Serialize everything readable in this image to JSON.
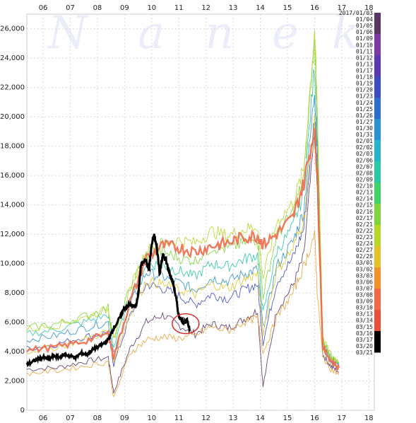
{
  "watermark": [
    "N",
    "a",
    "n",
    "e",
    "k"
  ],
  "chart_data": {
    "type": "line",
    "x_ticks": [
      "06",
      "07",
      "08",
      "09",
      "10",
      "11",
      "12",
      "13",
      "14",
      "15",
      "16",
      "17",
      "18"
    ],
    "y_ticks": [
      "0",
      "2,000",
      "4,000",
      "6,000",
      "8,000",
      "10,000",
      "12,000",
      "14,000",
      "16,000",
      "18,000",
      "20,000",
      "22,000",
      "24,000",
      "26,000"
    ],
    "xlim": [
      2005.4,
      2018.2
    ],
    "ylim": [
      0,
      27000
    ],
    "grid": true,
    "legend_position": "right",
    "legend_title": "2017/01/03",
    "legend_entries": [
      "01/04",
      "01/05",
      "01/06",
      "01/09",
      "01/10",
      "01/11",
      "01/12",
      "01/13",
      "01/17",
      "01/18",
      "01/19",
      "01/20",
      "01/23",
      "01/24",
      "01/25",
      "01/26",
      "01/27",
      "01/30",
      "01/31",
      "02/01",
      "02/02",
      "02/03",
      "02/06",
      "02/07",
      "02/08",
      "02/09",
      "02/10",
      "02/13",
      "02/14",
      "02/15",
      "02/16",
      "02/17",
      "02/21",
      "02/22",
      "02/23",
      "02/24",
      "02/27",
      "02/28",
      "03/01",
      "03/02",
      "03/03",
      "03/06",
      "03/07",
      "03/08",
      "03/09",
      "03/10",
      "03/13",
      "03/14",
      "03/15",
      "03/16",
      "03/17",
      "03/20",
      "03/21"
    ],
    "legend_colors": [
      "#5a3566",
      "#7a3aa0",
      "#5b3ab0",
      "#3f4cc0",
      "#2f6ccc",
      "#2a92cf",
      "#27b3c9",
      "#2cc7a6",
      "#42d26b",
      "#7ed43a",
      "#b7d72a",
      "#e0c42a",
      "#f0932c",
      "#f06a4a",
      "#e8503e",
      "#000000"
    ],
    "highlight_series": {
      "name": "03/21",
      "color": "#000000",
      "x": [
        2005.4,
        2005.6,
        2005.8,
        2006.0,
        2006.2,
        2006.4,
        2006.6,
        2006.8,
        2007.0,
        2007.2,
        2007.4,
        2007.6,
        2007.8,
        2008.0,
        2008.2,
        2008.4,
        2008.5,
        2008.6,
        2008.8,
        2009.0,
        2009.2,
        2009.4,
        2009.5,
        2009.6,
        2009.75,
        2009.9,
        2010.0,
        2010.1,
        2010.2,
        2010.3,
        2010.4,
        2010.5,
        2010.6,
        2010.7,
        2010.8,
        2010.9,
        2011.0,
        2011.1,
        2011.2,
        2011.3,
        2011.4
      ],
      "y": [
        3100,
        3300,
        3500,
        3600,
        3500,
        3700,
        3600,
        3800,
        3700,
        3600,
        3900,
        3800,
        4100,
        4300,
        4500,
        4800,
        5200,
        5600,
        6200,
        7000,
        7200,
        7000,
        7800,
        9800,
        10400,
        9600,
        11300,
        11900,
        10900,
        9300,
        10600,
        10300,
        9700,
        9100,
        8600,
        7600,
        6400,
        6200,
        6000,
        6100,
        5500
      ]
    },
    "annotation": {
      "type": "circle",
      "x": 2011.25,
      "y": 5900,
      "color": "#e03030"
    },
    "lines": [
      {
        "name": "2017/01/03",
        "color": "#5a3566",
        "x": [
          2005.4,
          2006.5,
          2007.5,
          2008.4,
          2008.6,
          2009.2,
          2009.8,
          2010.4,
          2011.0,
          2011.6,
          2012.2,
          2012.8,
          2013.4,
          2013.9,
          2014.1,
          2014.6,
          2015.2,
          2015.6,
          2016.0,
          2016.1,
          2016.3,
          2016.6,
          2016.9
        ],
        "y": [
          2800,
          2900,
          3300,
          3600,
          1200,
          4200,
          6000,
          6500,
          5800,
          5200,
          5900,
          5600,
          6200,
          6800,
          1600,
          6800,
          8500,
          10500,
          18800,
          15000,
          3800,
          3000,
          2600
        ]
      },
      {
        "name": "01/11",
        "color": "#3f4cc0",
        "x": [
          2005.4,
          2006.5,
          2007.5,
          2008.4,
          2008.6,
          2009.2,
          2009.8,
          2010.4,
          2011.0,
          2011.6,
          2012.2,
          2012.8,
          2013.4,
          2013.9,
          2014.1,
          2014.6,
          2015.2,
          2015.6,
          2016.0,
          2016.1,
          2016.3,
          2016.6,
          2016.9
        ],
        "y": [
          4200,
          4500,
          5000,
          5300,
          3100,
          6400,
          8600,
          8300,
          7800,
          7200,
          7900,
          7600,
          8200,
          8600,
          4600,
          8700,
          10400,
          12400,
          20000,
          16500,
          4200,
          3300,
          2800
        ]
      },
      {
        "name": "01/24",
        "color": "#2a92cf",
        "x": [
          2005.4,
          2006.5,
          2007.5,
          2008.4,
          2008.6,
          2009.2,
          2009.8,
          2010.4,
          2011.0,
          2011.6,
          2012.2,
          2012.8,
          2013.4,
          2013.9,
          2014.1,
          2014.6,
          2015.2,
          2015.6,
          2016.0,
          2016.1,
          2016.3,
          2016.6,
          2016.9
        ],
        "y": [
          4800,
          5100,
          5600,
          6000,
          3800,
          7200,
          9400,
          9100,
          8700,
          8200,
          9000,
          8800,
          9300,
          9600,
          5600,
          9800,
          11500,
          13600,
          21800,
          17500,
          4400,
          3500,
          3000
        ]
      },
      {
        "name": "02/03",
        "color": "#2cc7a6",
        "x": [
          2005.4,
          2006.5,
          2007.5,
          2008.4,
          2008.6,
          2009.2,
          2009.8,
          2010.4,
          2011.0,
          2011.6,
          2012.2,
          2012.8,
          2013.4,
          2013.9,
          2014.1,
          2014.6,
          2015.2,
          2015.6,
          2016.0,
          2016.1,
          2016.3,
          2016.6,
          2016.9
        ],
        "y": [
          5200,
          5500,
          6000,
          6500,
          4300,
          7800,
          10000,
          9900,
          9500,
          9100,
          10000,
          9800,
          10300,
          10600,
          6600,
          10800,
          12500,
          14800,
          23500,
          18500,
          4600,
          3600,
          3100
        ]
      },
      {
        "name": "02/13",
        "color": "#7ed43a",
        "x": [
          2005.4,
          2006.5,
          2007.5,
          2008.4,
          2008.6,
          2009.2,
          2009.8,
          2010.4,
          2011.0,
          2011.6,
          2012.2,
          2012.8,
          2013.4,
          2013.9,
          2014.1,
          2014.6,
          2015.2,
          2015.6,
          2016.0,
          2016.1,
          2016.3,
          2016.6,
          2016.9
        ],
        "y": [
          5600,
          5900,
          6400,
          7000,
          4800,
          8400,
          10600,
          10800,
          10400,
          10200,
          11100,
          11000,
          11400,
          11700,
          7800,
          11900,
          13500,
          15800,
          25400,
          19800,
          4800,
          3700,
          3200
        ]
      },
      {
        "name": "02/22",
        "color": "#b7d72a",
        "x": [
          2005.4,
          2006.5,
          2007.5,
          2008.4,
          2008.6,
          2009.2,
          2009.8,
          2010.4,
          2011.0,
          2011.6,
          2012.2,
          2012.8,
          2013.4,
          2013.9,
          2014.1,
          2014.6,
          2015.2,
          2015.6,
          2016.0,
          2016.1,
          2016.3,
          2016.6,
          2016.9
        ],
        "y": [
          5500,
          5800,
          6300,
          6900,
          4700,
          8300,
          10900,
          11400,
          11600,
          11400,
          12200,
          11900,
          12300,
          12600,
          9000,
          12800,
          14100,
          16400,
          26000,
          20500,
          4900,
          3800,
          3300
        ]
      },
      {
        "name": "03/01",
        "color": "#e0c42a",
        "x": [
          2005.4,
          2006.5,
          2007.5,
          2008.4,
          2008.6,
          2009.2,
          2009.8,
          2010.4,
          2011.0,
          2011.6,
          2012.2,
          2012.8,
          2013.4,
          2013.9,
          2014.1,
          2014.6,
          2015.2,
          2015.6,
          2016.0,
          2016.1,
          2016.3,
          2016.6,
          2016.9
        ],
        "y": [
          4000,
          4300,
          4800,
          5400,
          3400,
          6600,
          8800,
          8600,
          8200,
          7900,
          8600,
          8300,
          8900,
          9300,
          5300,
          9500,
          11000,
          13000,
          19500,
          16000,
          4300,
          3400,
          2900
        ]
      },
      {
        "name": "03/09",
        "color": "#f06a4a",
        "x": [
          2005.4,
          2006.5,
          2007.5,
          2008.4,
          2008.6,
          2009.2,
          2009.8,
          2010.4,
          2011.0,
          2011.6,
          2012.2,
          2012.8,
          2013.4,
          2013.9,
          2014.1,
          2014.6,
          2015.2,
          2015.6,
          2016.0,
          2016.1,
          2016.3,
          2016.6,
          2016.9
        ],
        "y": [
          4100,
          4300,
          4700,
          5200,
          3600,
          7400,
          10400,
          11200,
          11100,
          10800,
          11200,
          11400,
          11800,
          11900,
          11300,
          12000,
          13100,
          15500,
          19200,
          16000,
          4300,
          3400,
          2900
        ]
      },
      {
        "name": "03/13",
        "color": "#e8a23a",
        "x": [
          2005.4,
          2006.5,
          2007.5,
          2008.4,
          2008.6,
          2009.2,
          2009.8,
          2010.4,
          2011.0,
          2011.6,
          2012.2,
          2012.8,
          2013.4,
          2013.9,
          2014.1,
          2014.6,
          2015.2,
          2015.6,
          2016.0,
          2016.1,
          2016.3,
          2016.6,
          2016.9
        ],
        "y": [
          2500,
          2700,
          3000,
          3300,
          800,
          3900,
          4800,
          5000,
          4900,
          5100,
          5700,
          5400,
          6000,
          6300,
          3900,
          6300,
          8000,
          9800,
          12000,
          8000,
          3600,
          2800,
          2400
        ]
      }
    ]
  }
}
